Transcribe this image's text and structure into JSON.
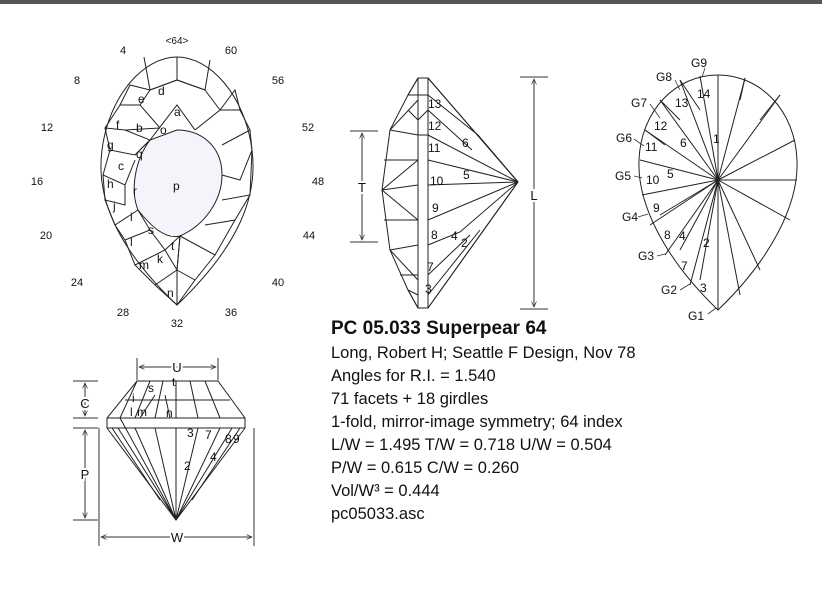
{
  "title": "PC 05.033 Superpear 64",
  "info_lines": [
    "Long, Robert H; Seattle F Design, Nov 78",
    "Angles for R.I. = 1.540",
    "71 facets + 18 girdles",
    "1-fold, mirror-image symmetry; 64 index",
    "L/W = 1.495 T/W = 0.718 U/W = 0.504",
    "P/W = 0.615 C/W = 0.260",
    "Vol/W³ = 0.444",
    "pc05033.asc"
  ],
  "index_marks": [
    "4",
    "<64>",
    "60",
    "8",
    "56",
    "12",
    "52",
    "16",
    "48",
    "20",
    "44",
    "24",
    "40",
    "28",
    "36",
    "32"
  ],
  "crown_top_labels": [
    "a",
    "b",
    "c",
    "d",
    "e",
    "f",
    "g",
    "h",
    "i",
    "j",
    "k",
    "l",
    "m",
    "n",
    "o",
    "p",
    "q",
    "r",
    "s",
    "t"
  ],
  "pavilion_side_labels": [
    "13",
    "12",
    "11",
    "10",
    "9",
    "8",
    "7",
    "3",
    "6",
    "5",
    "4",
    "2"
  ],
  "pavilion_side_dims": [
    "T",
    "L"
  ],
  "pavilion_bottom_labels": [
    "1",
    "2",
    "3",
    "4",
    "5",
    "6",
    "7",
    "8",
    "9",
    "10",
    "11",
    "12",
    "13",
    "14"
  ],
  "girdle_labels": [
    "G1",
    "G2",
    "G3",
    "G4",
    "G5",
    "G6",
    "G7",
    "G8",
    "G9"
  ],
  "profile_labels": [
    "s",
    "t",
    "i",
    "l",
    "m",
    "n",
    "3",
    "7",
    "8",
    "9",
    "2",
    "4"
  ],
  "profile_dims": [
    "U",
    "C",
    "P",
    "W"
  ]
}
